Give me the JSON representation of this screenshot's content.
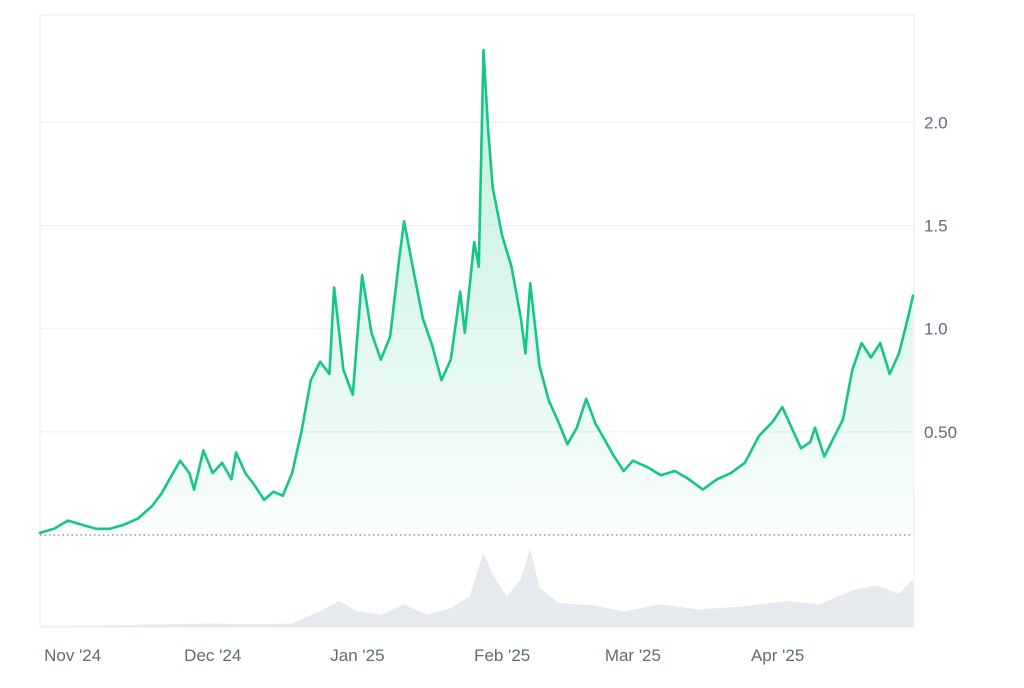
{
  "chart_data": {
    "type": "area",
    "title": "",
    "xlabel": "",
    "ylabel": "",
    "x_ticks": [
      "Nov '24",
      "Dec '24",
      "Jan '25",
      "Feb '25",
      "Mar '25",
      "Apr '25"
    ],
    "x_tick_dates": [
      "2024-11-01",
      "2024-12-01",
      "2025-01-01",
      "2025-02-01",
      "2025-03-01",
      "2025-04-01"
    ],
    "x_range": [
      "2024-10-25",
      "2025-04-30"
    ],
    "y_ticks": [
      {
        "value": 0.5,
        "label": "0.50"
      },
      {
        "value": 1.0,
        "label": "1.0"
      },
      {
        "value": 1.5,
        "label": "1.5"
      },
      {
        "value": 2.0,
        "label": "2.0"
      }
    ],
    "ylim": [
      0,
      2.52
    ],
    "baseline_dotted": true,
    "grid": true,
    "line_color": "#16c784",
    "volume_color": "#e6e9ee",
    "series": [
      {
        "points": [
          [
            "2024-10-25",
            0.01
          ],
          [
            "2024-10-28",
            0.03
          ],
          [
            "2024-10-31",
            0.07
          ],
          [
            "2024-11-03",
            0.05
          ],
          [
            "2024-11-06",
            0.03
          ],
          [
            "2024-11-09",
            0.03
          ],
          [
            "2024-11-12",
            0.05
          ],
          [
            "2024-11-15",
            0.08
          ],
          [
            "2024-11-18",
            0.14
          ],
          [
            "2024-11-20",
            0.2
          ],
          [
            "2024-11-22",
            0.28
          ],
          [
            "2024-11-24",
            0.36
          ],
          [
            "2024-11-26",
            0.3
          ],
          [
            "2024-11-27",
            0.22
          ],
          [
            "2024-11-29",
            0.41
          ],
          [
            "2024-12-01",
            0.3
          ],
          [
            "2024-12-03",
            0.35
          ],
          [
            "2024-12-05",
            0.27
          ],
          [
            "2024-12-06",
            0.4
          ],
          [
            "2024-12-08",
            0.3
          ],
          [
            "2024-12-10",
            0.24
          ],
          [
            "2024-12-12",
            0.17
          ],
          [
            "2024-12-14",
            0.21
          ],
          [
            "2024-12-16",
            0.19
          ],
          [
            "2024-12-18",
            0.3
          ],
          [
            "2024-12-20",
            0.5
          ],
          [
            "2024-12-22",
            0.75
          ],
          [
            "2024-12-24",
            0.84
          ],
          [
            "2024-12-26",
            0.78
          ],
          [
            "2024-12-27",
            1.2
          ],
          [
            "2024-12-29",
            0.8
          ],
          [
            "2024-12-31",
            0.68
          ],
          [
            "2025-01-02",
            1.26
          ],
          [
            "2025-01-04",
            0.98
          ],
          [
            "2025-01-06",
            0.85
          ],
          [
            "2025-01-08",
            0.96
          ],
          [
            "2025-01-10",
            1.35
          ],
          [
            "2025-01-11",
            1.52
          ],
          [
            "2025-01-13",
            1.28
          ],
          [
            "2025-01-15",
            1.05
          ],
          [
            "2025-01-17",
            0.92
          ],
          [
            "2025-01-19",
            0.75
          ],
          [
            "2025-01-21",
            0.85
          ],
          [
            "2025-01-23",
            1.18
          ],
          [
            "2025-01-24",
            0.98
          ],
          [
            "2025-01-26",
            1.42
          ],
          [
            "2025-01-27",
            1.3
          ],
          [
            "2025-01-28",
            2.35
          ],
          [
            "2025-01-29",
            1.96
          ],
          [
            "2025-01-30",
            1.68
          ],
          [
            "2025-02-01",
            1.45
          ],
          [
            "2025-02-03",
            1.3
          ],
          [
            "2025-02-05",
            1.05
          ],
          [
            "2025-02-06",
            0.88
          ],
          [
            "2025-02-07",
            1.22
          ],
          [
            "2025-02-09",
            0.82
          ],
          [
            "2025-02-11",
            0.65
          ],
          [
            "2025-02-13",
            0.55
          ],
          [
            "2025-02-15",
            0.44
          ],
          [
            "2025-02-17",
            0.52
          ],
          [
            "2025-02-19",
            0.66
          ],
          [
            "2025-02-21",
            0.54
          ],
          [
            "2025-02-23",
            0.46
          ],
          [
            "2025-02-25",
            0.38
          ],
          [
            "2025-02-27",
            0.31
          ],
          [
            "2025-03-01",
            0.36
          ],
          [
            "2025-03-04",
            0.33
          ],
          [
            "2025-03-07",
            0.29
          ],
          [
            "2025-03-10",
            0.31
          ],
          [
            "2025-03-13",
            0.27
          ],
          [
            "2025-03-16",
            0.22
          ],
          [
            "2025-03-19",
            0.27
          ],
          [
            "2025-03-22",
            0.3
          ],
          [
            "2025-03-25",
            0.35
          ],
          [
            "2025-03-28",
            0.48
          ],
          [
            "2025-03-31",
            0.55
          ],
          [
            "2025-04-02",
            0.62
          ],
          [
            "2025-04-04",
            0.52
          ],
          [
            "2025-04-06",
            0.42
          ],
          [
            "2025-04-08",
            0.45
          ],
          [
            "2025-04-09",
            0.52
          ],
          [
            "2025-04-11",
            0.38
          ],
          [
            "2025-04-13",
            0.47
          ],
          [
            "2025-04-15",
            0.56
          ],
          [
            "2025-04-17",
            0.8
          ],
          [
            "2025-04-19",
            0.93
          ],
          [
            "2025-04-21",
            0.86
          ],
          [
            "2025-04-23",
            0.93
          ],
          [
            "2025-04-25",
            0.78
          ],
          [
            "2025-04-27",
            0.88
          ],
          [
            "2025-04-29",
            1.06
          ],
          [
            "2025-04-30",
            1.16
          ]
        ]
      }
    ],
    "volume": [
      [
        "2024-10-25",
        0.01
      ],
      [
        "2024-11-01",
        0.01
      ],
      [
        "2024-11-10",
        0.02
      ],
      [
        "2024-11-20",
        0.03
      ],
      [
        "2024-12-01",
        0.04
      ],
      [
        "2024-12-10",
        0.03
      ],
      [
        "2024-12-18",
        0.04
      ],
      [
        "2024-12-24",
        0.18
      ],
      [
        "2024-12-28",
        0.3
      ],
      [
        "2025-01-01",
        0.18
      ],
      [
        "2025-01-06",
        0.14
      ],
      [
        "2025-01-11",
        0.26
      ],
      [
        "2025-01-16",
        0.14
      ],
      [
        "2025-01-21",
        0.22
      ],
      [
        "2025-01-25",
        0.35
      ],
      [
        "2025-01-28",
        0.85
      ],
      [
        "2025-01-30",
        0.6
      ],
      [
        "2025-02-02",
        0.35
      ],
      [
        "2025-02-05",
        0.55
      ],
      [
        "2025-02-07",
        0.9
      ],
      [
        "2025-02-09",
        0.45
      ],
      [
        "2025-02-13",
        0.28
      ],
      [
        "2025-02-20",
        0.25
      ],
      [
        "2025-02-27",
        0.18
      ],
      [
        "2025-03-07",
        0.26
      ],
      [
        "2025-03-15",
        0.2
      ],
      [
        "2025-03-25",
        0.24
      ],
      [
        "2025-04-03",
        0.3
      ],
      [
        "2025-04-10",
        0.26
      ],
      [
        "2025-04-17",
        0.42
      ],
      [
        "2025-04-22",
        0.48
      ],
      [
        "2025-04-27",
        0.38
      ],
      [
        "2025-04-30",
        0.55
      ]
    ]
  }
}
